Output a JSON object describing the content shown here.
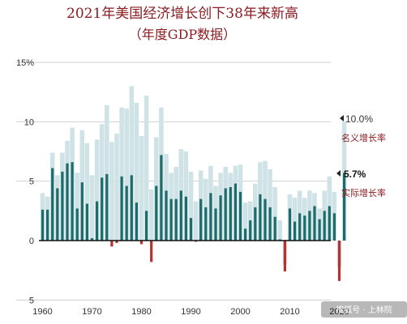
{
  "chart_data": {
    "type": "bar",
    "title": "2021年美国经济增长创下38年来新高",
    "subtitle": "（年度GDP数据）",
    "xlabel": "",
    "ylabel": "",
    "x_tick_labels": [
      "1960",
      "1970",
      "1980",
      "1990",
      "2000",
      "2010",
      "2020"
    ],
    "y_tick_labels": [
      "15%",
      "10",
      "5",
      "0",
      "5"
    ],
    "ylim": [
      -5,
      15
    ],
    "grid": true,
    "legend_placement": "right",
    "years": [
      1960,
      1961,
      1962,
      1963,
      1964,
      1965,
      1966,
      1967,
      1968,
      1969,
      1970,
      1971,
      1972,
      1973,
      1974,
      1975,
      1976,
      1977,
      1978,
      1979,
      1980,
      1981,
      1982,
      1983,
      1984,
      1985,
      1986,
      1987,
      1988,
      1989,
      1990,
      1991,
      1992,
      1993,
      1994,
      1995,
      1996,
      1997,
      1998,
      1999,
      2000,
      2001,
      2002,
      2003,
      2004,
      2005,
      2006,
      2007,
      2008,
      2009,
      2010,
      2011,
      2012,
      2013,
      2014,
      2015,
      2016,
      2017,
      2018,
      2019,
      2020,
      2021
    ],
    "series": [
      {
        "name": "名义增长率",
        "color": "#cfe3e6",
        "values": [
          4.0,
          3.7,
          7.4,
          5.5,
          7.4,
          8.4,
          9.5,
          5.7,
          9.3,
          8.2,
          5.5,
          8.5,
          9.8,
          11.4,
          8.3,
          9.0,
          11.2,
          11.1,
          13.0,
          11.6,
          8.8,
          12.2,
          4.3,
          8.7,
          11.2,
          7.3,
          5.7,
          6.2,
          7.7,
          7.5,
          5.8,
          3.3,
          5.9,
          5.2,
          6.3,
          4.6,
          5.7,
          6.2,
          5.7,
          6.3,
          6.4,
          3.2,
          3.3,
          4.8,
          6.6,
          6.7,
          6.0,
          4.5,
          1.7,
          -2.0,
          3.9,
          3.6,
          4.2,
          3.6,
          4.2,
          4.0,
          2.7,
          4.2,
          5.4,
          4.1,
          -2.2,
          10.0
        ]
      },
      {
        "name": "实际增长率",
        "color": "#1e6b6b",
        "negative_color": "#b8312f",
        "values": [
          2.6,
          2.6,
          6.1,
          4.4,
          5.8,
          6.5,
          6.6,
          2.7,
          4.9,
          3.1,
          0.2,
          3.3,
          5.3,
          5.6,
          -0.5,
          -0.2,
          5.4,
          4.6,
          5.5,
          3.2,
          -0.3,
          2.5,
          -1.8,
          4.6,
          7.2,
          4.2,
          3.5,
          3.5,
          4.2,
          3.7,
          1.9,
          -0.1,
          3.5,
          2.8,
          4.0,
          2.7,
          3.8,
          4.4,
          4.5,
          4.8,
          4.1,
          1.0,
          1.7,
          2.8,
          3.9,
          3.5,
          2.8,
          2.0,
          0.1,
          -2.6,
          2.7,
          1.6,
          2.3,
          2.1,
          2.5,
          2.9,
          1.8,
          2.5,
          2.9,
          2.3,
          -3.4,
          5.7
        ]
      }
    ],
    "annotations": {
      "nominal_value": "10.0%",
      "nominal_label": "名义增长率",
      "real_value": "5.7%",
      "real_label": "实际增长率"
    }
  },
  "watermark": "搜狐号 · 上林院"
}
